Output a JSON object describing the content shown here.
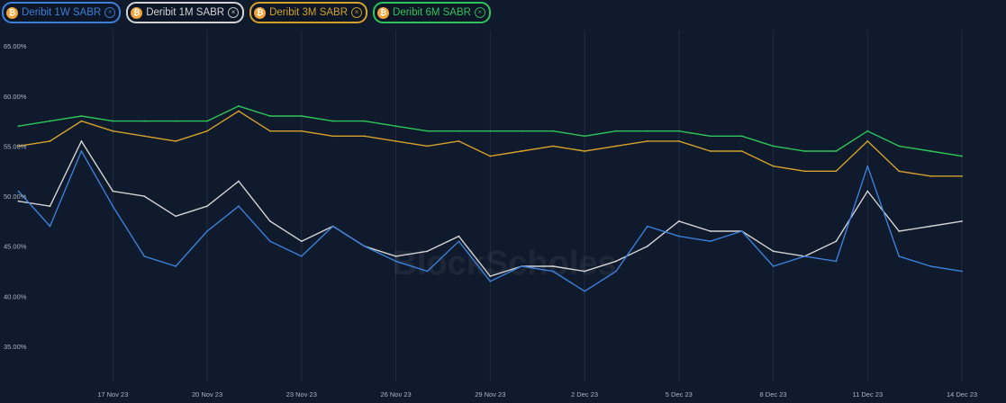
{
  "legend": {
    "items": [
      {
        "label": "Deribit 1W SABR",
        "color": "#3d7fd9"
      },
      {
        "label": "Deribit 1M SABR",
        "color": "#d3d3d3"
      },
      {
        "label": "Deribit 3M SABR",
        "color": "#d4a12b"
      },
      {
        "label": "Deribit 6M SABR",
        "color": "#2ec45a"
      }
    ],
    "close_glyph": "×",
    "btc_glyph": "₿"
  },
  "watermark": "BlockScholes",
  "chart_data": {
    "type": "line",
    "title": "",
    "xlabel": "",
    "ylabel": "",
    "ylim": [
      31.5,
      66
    ],
    "xlim": [
      "2023-11-14T12:00",
      "2023-12-15T00:00"
    ],
    "grid": {
      "vertical": true,
      "horizontal": false
    },
    "legend_position": "top-left",
    "yticks": [
      "35.00%",
      "40.00%",
      "45.00%",
      "50.00%",
      "55.00%",
      "60.00%",
      "65.00%"
    ],
    "ytick_values": [
      35,
      40,
      45,
      50,
      55,
      60,
      65
    ],
    "xticks": [
      "17 Nov 23",
      "20 Nov 23",
      "23 Nov 23",
      "26 Nov 23",
      "29 Nov 23",
      "2 Dec 23",
      "5 Dec 23",
      "8 Dec 23",
      "11 Dec 23",
      "14 Dec 23"
    ],
    "xtick_values": [
      "2023-11-17",
      "2023-11-20",
      "2023-11-23",
      "2023-11-26",
      "2023-11-29",
      "2023-12-02",
      "2023-12-05",
      "2023-12-08",
      "2023-12-11",
      "2023-12-14"
    ],
    "x": [
      "2023-11-14",
      "2023-11-15",
      "2023-11-16",
      "2023-11-17",
      "2023-11-18",
      "2023-11-19",
      "2023-11-20",
      "2023-11-21",
      "2023-11-22",
      "2023-11-23",
      "2023-11-24",
      "2023-11-25",
      "2023-11-26",
      "2023-11-27",
      "2023-11-28",
      "2023-11-29",
      "2023-11-30",
      "2023-12-01",
      "2023-12-02",
      "2023-12-03",
      "2023-12-04",
      "2023-12-05",
      "2023-12-06",
      "2023-12-07",
      "2023-12-08",
      "2023-12-09",
      "2023-12-10",
      "2023-12-11",
      "2023-12-12",
      "2023-12-13",
      "2023-12-14"
    ],
    "series": [
      {
        "name": "Deribit 1W SABR",
        "color": "#3d7fd9",
        "values": [
          50.5,
          47.0,
          54.5,
          49.0,
          44.0,
          43.0,
          46.5,
          49.0,
          45.5,
          44.0,
          47.0,
          45.0,
          43.5,
          42.5,
          45.5,
          41.5,
          43.0,
          42.5,
          40.5,
          42.5,
          47.0,
          46.0,
          45.5,
          46.5,
          43.0,
          44.0,
          43.5,
          53.0,
          44.0,
          43.0,
          42.5
        ]
      },
      {
        "name": "Deribit 1M SABR",
        "color": "#d3d3d3",
        "values": [
          49.5,
          49.0,
          55.5,
          50.5,
          50.0,
          48.0,
          49.0,
          51.5,
          47.5,
          45.5,
          47.0,
          45.0,
          44.0,
          44.5,
          46.0,
          42.0,
          43.0,
          43.0,
          42.5,
          43.5,
          45.0,
          47.5,
          46.5,
          46.5,
          44.5,
          44.0,
          45.5,
          50.5,
          46.5,
          47.0,
          47.5
        ]
      },
      {
        "name": "Deribit 3M SABR",
        "color": "#d4a12b",
        "values": [
          55.0,
          55.5,
          57.5,
          56.5,
          56.0,
          55.5,
          56.5,
          58.5,
          56.5,
          56.5,
          56.0,
          56.0,
          55.5,
          55.0,
          55.5,
          54.0,
          54.5,
          55.0,
          54.5,
          55.0,
          55.5,
          55.5,
          54.5,
          54.5,
          53.0,
          52.5,
          52.5,
          55.5,
          52.5,
          52.0,
          52.0
        ]
      },
      {
        "name": "Deribit 6M SABR",
        "color": "#2ec45a",
        "values": [
          57.0,
          57.5,
          58.0,
          57.5,
          57.5,
          57.5,
          57.5,
          59.0,
          58.0,
          58.0,
          57.5,
          57.5,
          57.0,
          56.5,
          56.5,
          56.5,
          56.5,
          56.5,
          56.0,
          56.5,
          56.5,
          56.5,
          56.0,
          56.0,
          55.0,
          54.5,
          54.5,
          56.5,
          55.0,
          54.5,
          54.0
        ]
      }
    ]
  }
}
